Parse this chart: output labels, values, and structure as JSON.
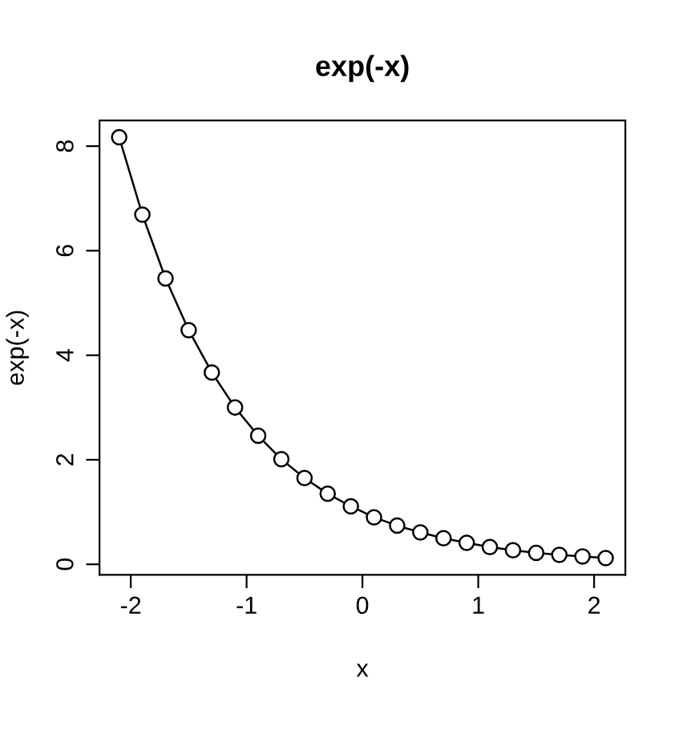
{
  "chart_data": {
    "type": "line",
    "title": "exp(-x)",
    "xlabel": "x",
    "ylabel": "exp(-x)",
    "x": [
      -2.1,
      -1.9,
      -1.7,
      -1.5,
      -1.3,
      -1.1,
      -0.9,
      -0.7,
      -0.5,
      -0.3,
      -0.1,
      0.1,
      0.3,
      0.5,
      0.7,
      0.9,
      1.1,
      1.3,
      1.5,
      1.7,
      1.9,
      2.1
    ],
    "series": [
      {
        "color": "#000000",
        "values": [
          8.17,
          6.69,
          5.47,
          4.48,
          3.67,
          3.0,
          2.46,
          2.01,
          1.65,
          1.35,
          1.11,
          0.9,
          0.74,
          0.61,
          0.5,
          0.41,
          0.33,
          0.27,
          0.22,
          0.18,
          0.15,
          0.12
        ]
      }
    ],
    "xlim": [
      -2.27,
      2.27
    ],
    "ylim": [
      -0.2,
      8.49
    ],
    "xticks": [
      -2,
      -1,
      0,
      1,
      2
    ],
    "yticks": [
      0,
      2,
      4,
      6,
      8
    ],
    "marker": "circle",
    "line_style": "solid",
    "grid": false,
    "legend": false
  }
}
